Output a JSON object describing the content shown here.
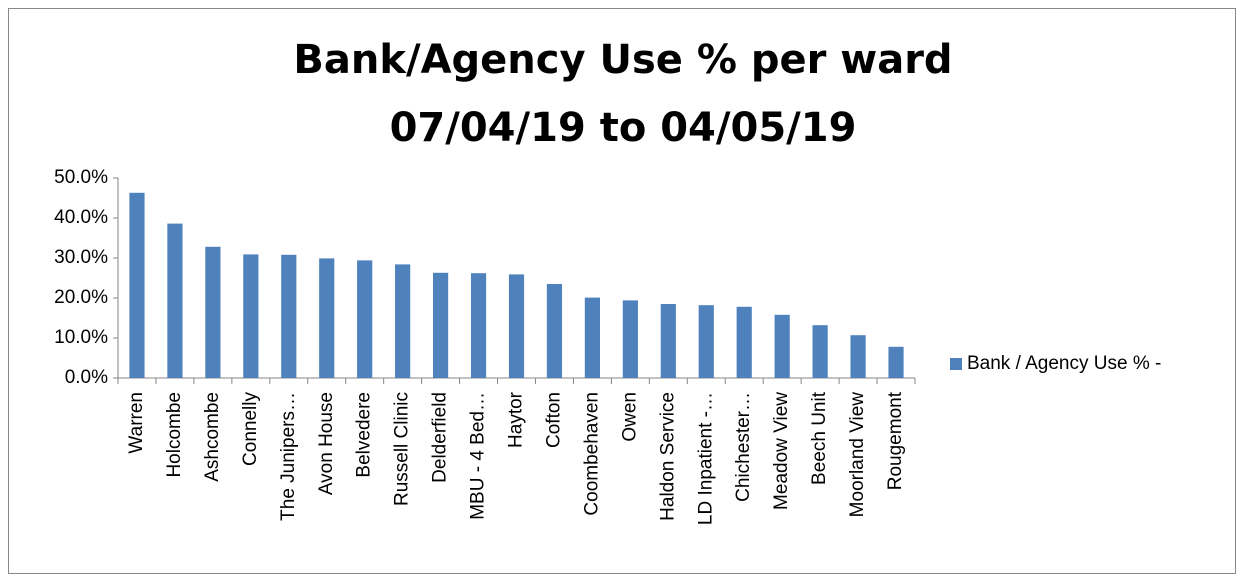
{
  "chart_data": {
    "type": "bar",
    "title": [
      "Bank/Agency Use % per ward",
      "07/04/19 to 04/05/19"
    ],
    "categories": [
      "Warren",
      "Holcombe",
      "Ashcombe",
      "Connelly",
      "The Junipers…",
      "Avon House",
      "Belvedere",
      "Russell Clinic",
      "Delderfield",
      "MBU - 4 Bed…",
      "Haytor",
      "Cofton",
      "Coombehaven",
      "Owen",
      "Haldon Service",
      "LD Inpatient -…",
      "Chichester…",
      "Meadow View",
      "Beech Unit",
      "Moorland View",
      "Rougemont"
    ],
    "series": [
      {
        "name": "Bank / Agency Use % -",
        "color": "#4f81bd",
        "values": [
          46.3,
          38.6,
          32.8,
          30.9,
          30.8,
          29.9,
          29.4,
          28.4,
          26.3,
          26.2,
          25.9,
          23.5,
          20.1,
          19.4,
          18.5,
          18.2,
          17.8,
          15.8,
          13.2,
          10.7,
          7.8
        ]
      }
    ],
    "ylim": [
      0,
      50
    ],
    "yticks": [
      {
        "value": 0,
        "label": "0.0%"
      },
      {
        "value": 10,
        "label": "10.0%"
      },
      {
        "value": 20,
        "label": "20.0%"
      },
      {
        "value": 30,
        "label": "30.0%"
      },
      {
        "value": 40,
        "label": "40.0%"
      },
      {
        "value": 50,
        "label": "50.0%"
      }
    ],
    "legend": "right",
    "grid": false
  }
}
